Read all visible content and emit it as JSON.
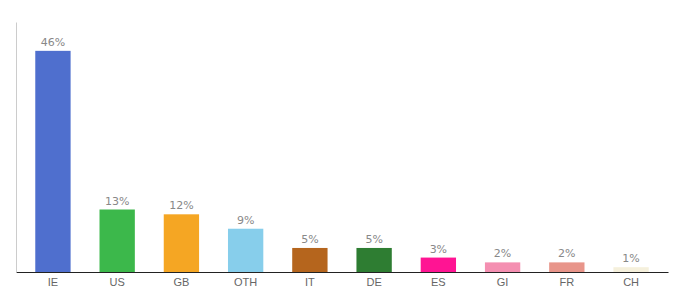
{
  "chart_data": {
    "type": "bar",
    "categories": [
      "IE",
      "US",
      "GB",
      "OTH",
      "IT",
      "DE",
      "ES",
      "GI",
      "FR",
      "CH"
    ],
    "values": [
      46,
      13,
      12,
      9,
      5,
      5,
      3,
      2,
      2,
      1
    ],
    "value_labels": [
      "46%",
      "13%",
      "12%",
      "9%",
      "5%",
      "5%",
      "3%",
      "2%",
      "2%",
      "1%"
    ],
    "colors": [
      "#4f6fce",
      "#3cb84b",
      "#f5a623",
      "#87ceeb",
      "#b5651d",
      "#2e7d32",
      "#ff1493",
      "#f48fb1",
      "#e8958a",
      "#f5f0dc"
    ],
    "ylim": [
      0,
      52
    ],
    "data_labels": true,
    "tick_labels": "x",
    "grid": false
  }
}
